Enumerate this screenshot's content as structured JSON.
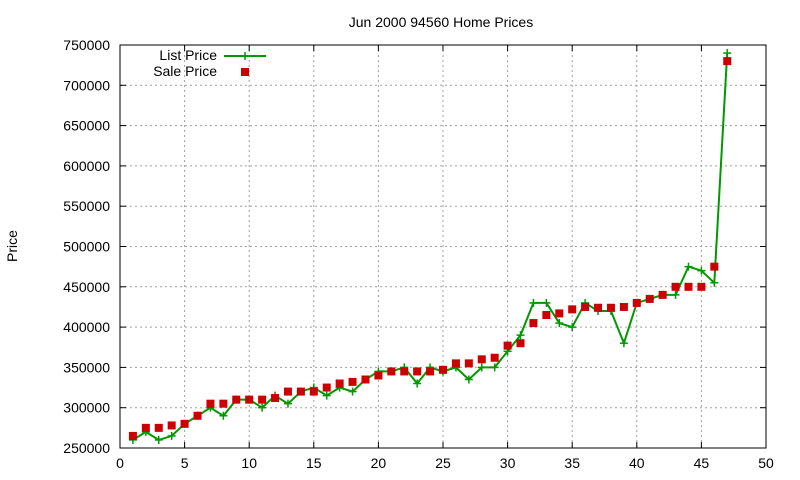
{
  "chart_data": {
    "type": "line",
    "title": "Jun 2000 94560 Home Prices",
    "xlabel": "",
    "ylabel": "Price",
    "xlim": [
      0,
      50
    ],
    "ylim": [
      250000,
      750000
    ],
    "xticks": [
      0,
      5,
      10,
      15,
      20,
      25,
      30,
      35,
      40,
      45,
      50
    ],
    "yticks": [
      250000,
      300000,
      350000,
      400000,
      450000,
      500000,
      550000,
      600000,
      650000,
      700000,
      750000
    ],
    "grid": true,
    "legend_position": "top-left",
    "series": [
      {
        "name": "List Price",
        "style": "line-plus",
        "color": "#009900",
        "x": [
          1,
          2,
          3,
          4,
          5,
          6,
          7,
          8,
          9,
          10,
          11,
          12,
          13,
          14,
          15,
          16,
          17,
          18,
          19,
          20,
          21,
          22,
          23,
          24,
          25,
          26,
          27,
          28,
          29,
          30,
          31,
          32,
          33,
          34,
          35,
          36,
          37,
          38,
          39,
          40,
          41,
          42,
          43,
          44,
          45,
          46,
          47
        ],
        "y": [
          260000,
          270000,
          260000,
          265000,
          280000,
          290000,
          300000,
          290000,
          310000,
          310000,
          300000,
          315000,
          305000,
          320000,
          325000,
          315000,
          325000,
          320000,
          335000,
          345000,
          345000,
          350000,
          330000,
          350000,
          345000,
          350000,
          335000,
          350000,
          350000,
          370000,
          390000,
          430000,
          430000,
          405000,
          400000,
          430000,
          420000,
          420000,
          380000,
          430000,
          435000,
          440000,
          440000,
          475000,
          470000,
          455000,
          740000
        ]
      },
      {
        "name": "Sale Price",
        "style": "square",
        "color": "#cc0000",
        "x": [
          1,
          2,
          3,
          4,
          5,
          6,
          7,
          8,
          9,
          10,
          11,
          12,
          13,
          14,
          15,
          16,
          17,
          18,
          19,
          20,
          21,
          22,
          23,
          24,
          25,
          26,
          27,
          28,
          29,
          30,
          31,
          32,
          33,
          34,
          35,
          36,
          37,
          38,
          39,
          40,
          41,
          42,
          43,
          44,
          45,
          46,
          47
        ],
        "y": [
          265000,
          275000,
          275000,
          278000,
          280000,
          290000,
          305000,
          305000,
          310000,
          310000,
          310000,
          312000,
          320000,
          320000,
          320000,
          325000,
          330000,
          332000,
          335000,
          340000,
          345000,
          345000,
          345000,
          345000,
          347000,
          355000,
          355000,
          360000,
          362000,
          377000,
          380000,
          405000,
          415000,
          417000,
          422000,
          425000,
          424000,
          424000,
          425000,
          430000,
          435000,
          440000,
          450000,
          450000,
          450000,
          475000,
          730000
        ]
      }
    ]
  }
}
